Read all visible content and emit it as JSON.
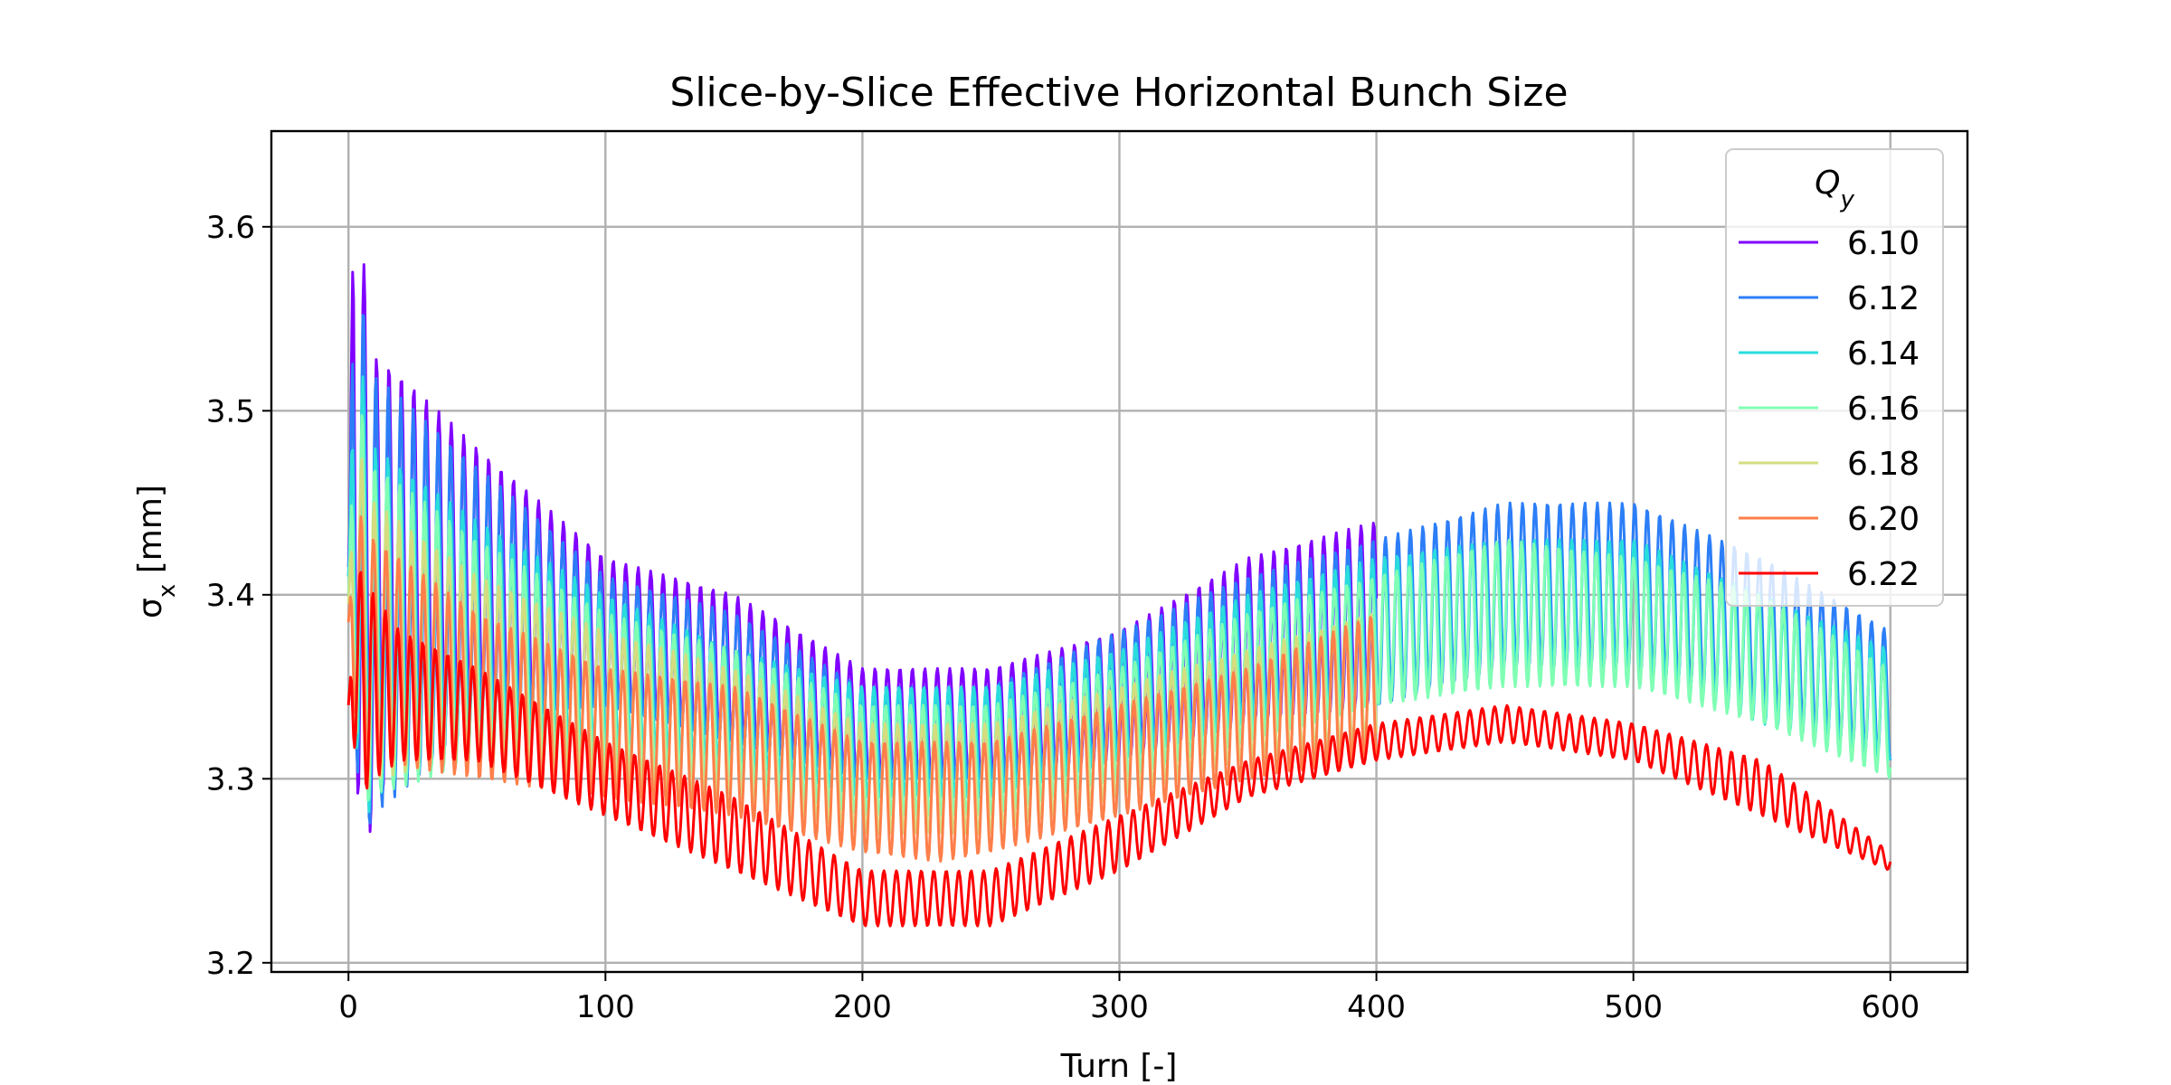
{
  "chart_data": {
    "type": "line",
    "title": "Slice-by-Slice Effective Horizontal Bunch Size",
    "xlabel": "Turn [-]",
    "ylabel": "σx [mm]",
    "xlim": [
      -30,
      630
    ],
    "ylim": [
      3.195,
      3.652
    ],
    "x_ticks": [
      0,
      100,
      200,
      300,
      400,
      500,
      600
    ],
    "y_ticks": [
      3.2,
      3.3,
      3.4,
      3.5,
      3.6
    ],
    "x_tick_labels": [
      "0",
      "100",
      "200",
      "300",
      "400",
      "500",
      "600"
    ],
    "y_tick_labels": [
      "3.2",
      "3.3",
      "3.4",
      "3.5",
      "3.6"
    ],
    "grid": true,
    "legend": {
      "title": "Q_y",
      "placement": "top-right"
    },
    "series": [
      {
        "name": "6.10",
        "color": "#8000ff",
        "x_range": [
          0,
          400
        ],
        "envelope_max": [
          [
            0,
            3.43
          ],
          [
            2,
            3.63
          ],
          [
            10,
            3.53
          ],
          [
            20,
            3.52
          ],
          [
            50,
            3.48
          ],
          [
            100,
            3.42
          ],
          [
            150,
            3.4
          ],
          [
            200,
            3.36
          ],
          [
            250,
            3.36
          ],
          [
            300,
            3.38
          ],
          [
            350,
            3.42
          ],
          [
            400,
            3.44
          ]
        ],
        "envelope_min": [
          [
            0,
            3.4
          ],
          [
            5,
            3.25
          ],
          [
            10,
            3.28
          ],
          [
            20,
            3.31
          ],
          [
            50,
            3.34
          ],
          [
            100,
            3.34
          ],
          [
            150,
            3.32
          ],
          [
            200,
            3.3
          ],
          [
            250,
            3.3
          ],
          [
            300,
            3.31
          ],
          [
            350,
            3.33
          ],
          [
            400,
            3.34
          ]
        ]
      },
      {
        "name": "6.12",
        "color": "#2c7ef7",
        "x_range": [
          0,
          600
        ],
        "envelope_max": [
          [
            0,
            3.42
          ],
          [
            2,
            3.59
          ],
          [
            10,
            3.52
          ],
          [
            50,
            3.47
          ],
          [
            100,
            3.41
          ],
          [
            150,
            3.39
          ],
          [
            200,
            3.35
          ],
          [
            250,
            3.35
          ],
          [
            300,
            3.38
          ],
          [
            350,
            3.41
          ],
          [
            400,
            3.43
          ],
          [
            450,
            3.45
          ],
          [
            500,
            3.45
          ],
          [
            550,
            3.42
          ],
          [
            600,
            3.38
          ]
        ],
        "envelope_min": [
          [
            0,
            3.4
          ],
          [
            5,
            3.26
          ],
          [
            10,
            3.28
          ],
          [
            50,
            3.33
          ],
          [
            100,
            3.34
          ],
          [
            150,
            3.32
          ],
          [
            200,
            3.3
          ],
          [
            250,
            3.3
          ],
          [
            300,
            3.31
          ],
          [
            350,
            3.33
          ],
          [
            400,
            3.34
          ],
          [
            450,
            3.36
          ],
          [
            500,
            3.36
          ],
          [
            550,
            3.34
          ],
          [
            600,
            3.31
          ]
        ]
      },
      {
        "name": "6.14",
        "color": "#2adddd",
        "x_range": [
          0,
          600
        ],
        "envelope_max": [
          [
            0,
            3.42
          ],
          [
            2,
            3.55
          ],
          [
            10,
            3.48
          ],
          [
            50,
            3.44
          ],
          [
            100,
            3.4
          ],
          [
            150,
            3.37
          ],
          [
            200,
            3.35
          ],
          [
            250,
            3.35
          ],
          [
            300,
            3.37
          ],
          [
            350,
            3.4
          ],
          [
            400,
            3.42
          ],
          [
            450,
            3.43
          ],
          [
            500,
            3.43
          ],
          [
            550,
            3.4
          ],
          [
            600,
            3.37
          ]
        ],
        "envelope_min": [
          [
            0,
            3.4
          ],
          [
            5,
            3.27
          ],
          [
            10,
            3.29
          ],
          [
            50,
            3.32
          ],
          [
            100,
            3.32
          ],
          [
            150,
            3.31
          ],
          [
            200,
            3.29
          ],
          [
            250,
            3.29
          ],
          [
            300,
            3.31
          ],
          [
            350,
            3.33
          ],
          [
            400,
            3.34
          ],
          [
            450,
            3.36
          ],
          [
            500,
            3.36
          ],
          [
            550,
            3.33
          ],
          [
            600,
            3.31
          ]
        ]
      },
      {
        "name": "6.16",
        "color": "#80ffb4",
        "x_range": [
          0,
          600
        ],
        "envelope_max": [
          [
            0,
            3.41
          ],
          [
            2,
            3.52
          ],
          [
            10,
            3.47
          ],
          [
            50,
            3.43
          ],
          [
            100,
            3.39
          ],
          [
            150,
            3.37
          ],
          [
            200,
            3.34
          ],
          [
            250,
            3.34
          ],
          [
            300,
            3.36
          ],
          [
            350,
            3.39
          ],
          [
            400,
            3.41
          ],
          [
            450,
            3.43
          ],
          [
            500,
            3.42
          ],
          [
            550,
            3.4
          ],
          [
            600,
            3.36
          ]
        ],
        "envelope_min": [
          [
            0,
            3.39
          ],
          [
            5,
            3.28
          ],
          [
            10,
            3.29
          ],
          [
            50,
            3.31
          ],
          [
            100,
            3.31
          ],
          [
            150,
            3.3
          ],
          [
            200,
            3.28
          ],
          [
            250,
            3.28
          ],
          [
            300,
            3.3
          ],
          [
            350,
            3.32
          ],
          [
            400,
            3.34
          ],
          [
            450,
            3.35
          ],
          [
            500,
            3.35
          ],
          [
            550,
            3.33
          ],
          [
            600,
            3.3
          ]
        ]
      },
      {
        "name": "6.18",
        "color": "#d4dd80",
        "x_range": [
          0,
          400
        ],
        "envelope_max": [
          [
            0,
            3.41
          ],
          [
            2,
            3.49
          ],
          [
            10,
            3.45
          ],
          [
            50,
            3.41
          ],
          [
            100,
            3.38
          ],
          [
            150,
            3.36
          ],
          [
            200,
            3.33
          ],
          [
            250,
            3.33
          ],
          [
            300,
            3.35
          ],
          [
            350,
            3.37
          ],
          [
            400,
            3.39
          ]
        ],
        "envelope_min": [
          [
            0,
            3.38
          ],
          [
            5,
            3.29
          ],
          [
            10,
            3.3
          ],
          [
            50,
            3.31
          ],
          [
            100,
            3.3
          ],
          [
            150,
            3.29
          ],
          [
            200,
            3.27
          ],
          [
            250,
            3.27
          ],
          [
            300,
            3.29
          ],
          [
            350,
            3.31
          ],
          [
            400,
            3.32
          ]
        ]
      },
      {
        "name": "6.20",
        "color": "#ff7f4a",
        "x_range": [
          0,
          400
        ],
        "envelope_max": [
          [
            0,
            3.4
          ],
          [
            2,
            3.45
          ],
          [
            10,
            3.43
          ],
          [
            50,
            3.39
          ],
          [
            100,
            3.36
          ],
          [
            150,
            3.35
          ],
          [
            200,
            3.32
          ],
          [
            250,
            3.32
          ],
          [
            300,
            3.34
          ],
          [
            350,
            3.36
          ],
          [
            400,
            3.39
          ]
        ],
        "envelope_min": [
          [
            0,
            3.37
          ],
          [
            5,
            3.3
          ],
          [
            10,
            3.31
          ],
          [
            50,
            3.3
          ],
          [
            100,
            3.29
          ],
          [
            150,
            3.28
          ],
          [
            200,
            3.26
          ],
          [
            230,
            3.255
          ],
          [
            250,
            3.26
          ],
          [
            300,
            3.28
          ],
          [
            350,
            3.3
          ],
          [
            400,
            3.31
          ]
        ]
      },
      {
        "name": "6.22",
        "color": "#ff0000",
        "x_range": [
          0,
          600
        ],
        "envelope_max": [
          [
            0,
            3.34
          ],
          [
            2,
            3.42
          ],
          [
            10,
            3.4
          ],
          [
            20,
            3.38
          ],
          [
            50,
            3.36
          ],
          [
            100,
            3.32
          ],
          [
            150,
            3.29
          ],
          [
            200,
            3.25
          ],
          [
            250,
            3.25
          ],
          [
            300,
            3.28
          ],
          [
            350,
            3.31
          ],
          [
            400,
            3.33
          ],
          [
            450,
            3.34
          ],
          [
            500,
            3.33
          ],
          [
            550,
            3.31
          ],
          [
            600,
            3.26
          ]
        ],
        "envelope_min": [
          [
            0,
            3.34
          ],
          [
            5,
            3.29
          ],
          [
            10,
            3.3
          ],
          [
            20,
            3.31
          ],
          [
            50,
            3.31
          ],
          [
            100,
            3.28
          ],
          [
            150,
            3.25
          ],
          [
            200,
            3.22
          ],
          [
            250,
            3.22
          ],
          [
            300,
            3.25
          ],
          [
            350,
            3.29
          ],
          [
            400,
            3.31
          ],
          [
            450,
            3.32
          ],
          [
            500,
            3.31
          ],
          [
            550,
            3.28
          ],
          [
            600,
            3.25
          ]
        ]
      }
    ]
  }
}
